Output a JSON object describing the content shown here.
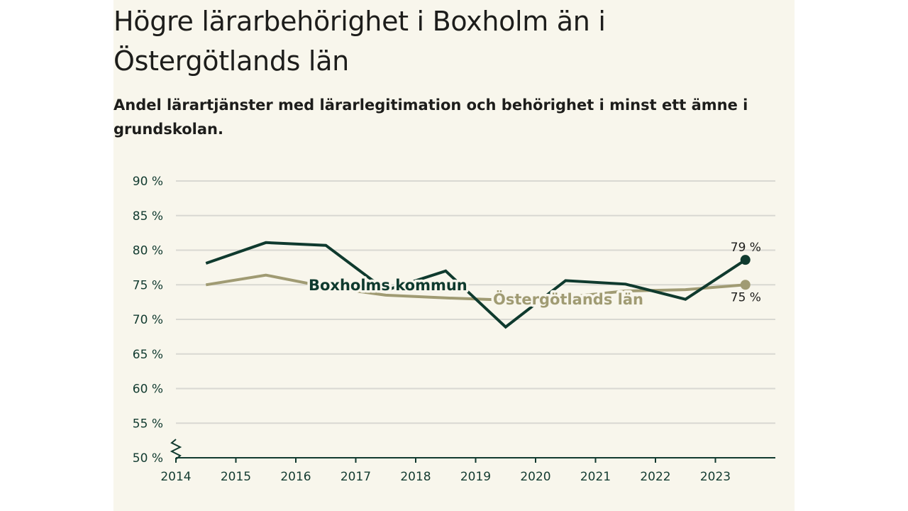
{
  "title": "Högre lärarbehörighet i Boxholm än i Östergötlands län",
  "subtitle": "Andel lärartjänster med lärarlegitimation och behörighet i minst ett ämne i grundskolan.",
  "colors": {
    "background": "#f8f6ec",
    "boxholm": "#0f3a2e",
    "ostergotland": "#a09b73",
    "grid": "#d9d8d2",
    "axis": "#123b30"
  },
  "chart_data": {
    "type": "line",
    "x": [
      2014.5,
      2015.5,
      2016.5,
      2017.5,
      2018.5,
      2019.5,
      2020.5,
      2021.5,
      2022.5,
      2023.5
    ],
    "xlim": [
      2014,
      2024
    ],
    "xticks": [
      2014,
      2015,
      2016,
      2017,
      2018,
      2019,
      2020,
      2021,
      2022,
      2023
    ],
    "ylim": [
      50,
      90
    ],
    "yticks": [
      50,
      55,
      60,
      65,
      70,
      75,
      80,
      85,
      90
    ],
    "ytick_labels": [
      "50 %",
      "55 %",
      "60 %",
      "65 %",
      "70 %",
      "75 %",
      "80 %",
      "85 %",
      "90 %"
    ],
    "axis_break": true,
    "grid": true,
    "series": [
      {
        "name": "Boxholms kommun",
        "color": "#0f3a2e",
        "values": [
          78.1,
          81.1,
          80.7,
          74.2,
          77.0,
          68.9,
          75.6,
          75.1,
          72.9,
          78.6
        ],
        "end_label": "79 %"
      },
      {
        "name": "Östergötlands län",
        "color": "#a09b73",
        "values": [
          75.0,
          76.4,
          74.7,
          73.5,
          73.1,
          72.8,
          73.2,
          74.1,
          74.3,
          75.0
        ],
        "end_label": "75 %"
      }
    ]
  }
}
